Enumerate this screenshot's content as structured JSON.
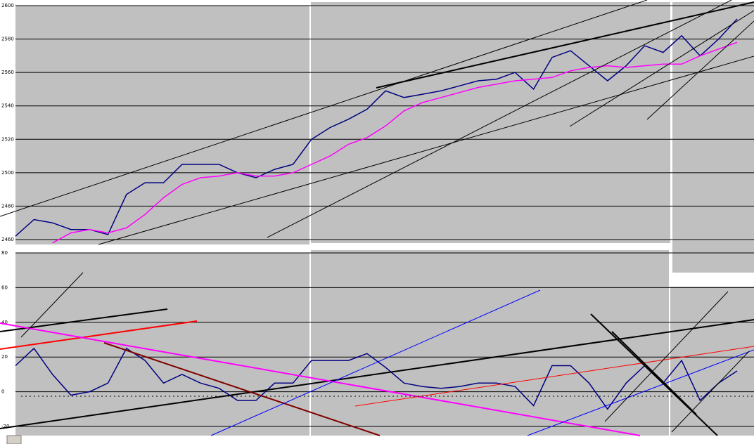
{
  "chart_data": [
    {
      "type": "line",
      "ylim": [
        2460,
        2600
      ],
      "yticks": [
        2460,
        2480,
        2500,
        2520,
        2540,
        2560,
        2580,
        2600
      ],
      "grid": true,
      "categories": [
        null,
        null,
        null,
        null,
        null,
        null,
        null,
        null,
        null,
        null,
        null,
        null,
        null,
        null,
        null,
        null,
        null,
        null,
        null,
        null,
        null,
        null,
        null,
        null,
        null,
        null,
        null,
        null,
        null,
        null,
        null,
        null,
        null,
        null,
        null,
        null,
        null,
        null,
        null,
        null
      ],
      "series": [
        {
          "color": "#000080",
          "values": [
            2462,
            2472,
            2470,
            2466,
            2466,
            2463,
            2487,
            2494,
            2494,
            2505,
            2505,
            2505,
            2500,
            2497,
            2502,
            2505,
            2520,
            2527,
            2532,
            2538,
            2549,
            2545,
            2547,
            2549,
            2552,
            2555,
            2556,
            2560,
            2550,
            2569,
            2573,
            2564,
            2555,
            2564,
            2576,
            2572,
            2582,
            2570,
            2580,
            2592
          ]
        },
        {
          "color": "#ff00ff",
          "values": [
            null,
            null,
            2458,
            2464,
            2466,
            2464,
            2467,
            2475,
            2485,
            2493,
            2497,
            2498,
            2500,
            2498,
            2498,
            2500,
            2505,
            2510,
            2517,
            2521,
            2528,
            2537,
            2542,
            2545,
            2548,
            2551,
            2553,
            2555,
            2556,
            2557,
            2561,
            2563,
            2564,
            2563,
            2564,
            2565,
            2565,
            2570,
            2574,
            2578
          ]
        }
      ]
    },
    {
      "type": "line",
      "ylim": [
        -20,
        80
      ],
      "yticks": [
        -20,
        0,
        20,
        40,
        60,
        80
      ],
      "grid": true,
      "categories": [
        null,
        null,
        null,
        null,
        null,
        null,
        null,
        null,
        null,
        null,
        null,
        null,
        null,
        null,
        null,
        null,
        null,
        null,
        null,
        null,
        null,
        null,
        null,
        null,
        null,
        null,
        null,
        null,
        null,
        null,
        null,
        null,
        null,
        null,
        null,
        null,
        null,
        null,
        null,
        null
      ],
      "series": [
        {
          "color": "#000080",
          "values": [
            15,
            25,
            10,
            -2,
            0,
            5,
            25,
            18,
            5,
            10,
            5,
            2,
            -5,
            -5,
            5,
            5,
            18,
            18,
            18,
            22,
            14,
            5,
            3,
            2,
            3,
            5,
            5,
            3,
            -8,
            15,
            15,
            5,
            -10,
            5,
            15,
            5,
            18,
            -5,
            5,
            12
          ]
        }
      ]
    }
  ]
}
